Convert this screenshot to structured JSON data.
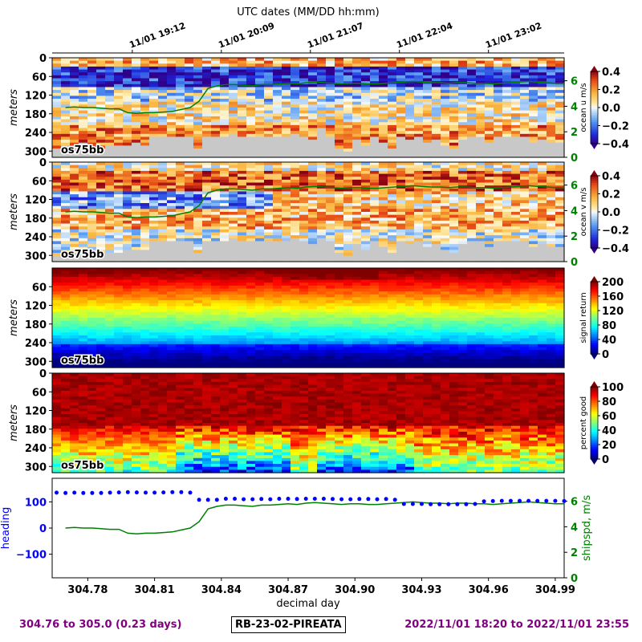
{
  "top_axis": {
    "title": "UTC dates (MM/DD hh:mm)",
    "ticks": [
      {
        "x": 304.8,
        "label": "11/01 19:12"
      },
      {
        "x": 304.84,
        "label": "11/01 20:09"
      },
      {
        "x": 304.88,
        "label": "11/01 21:07"
      },
      {
        "x": 304.92,
        "label": "11/01 22:04"
      },
      {
        "x": 304.96,
        "label": "11/01 23:02"
      }
    ]
  },
  "footer": {
    "range_text": "304.76 to 305.0 (0.23 days)",
    "cruise_id": "RB-23-02-PIREATA",
    "date_range_text": "2022/11/01 18:20 to 2022/11/01 23:55"
  },
  "colors": {
    "text_purple": "#800080",
    "heading_blue": "#0000ff",
    "shipspd_green": "#008000",
    "nodata_gray": "#c8c8c8"
  },
  "chart_data": [
    {
      "type": "heatmap",
      "name_tag": "os75bb",
      "ylabel": "meters",
      "yticks": [
        0,
        60,
        120,
        180,
        240,
        300
      ],
      "ylim": [
        320,
        0
      ],
      "xlim": [
        304.764,
        304.994
      ],
      "colorbar": {
        "label": "ocean u m/s",
        "ticks": [
          "0.4",
          "0.2",
          "0.0",
          "−0.2",
          "−0.4"
        ],
        "range": [
          -0.4,
          0.4
        ],
        "cmap": "bwr-jet"
      },
      "right_axis": {
        "ticks": [
          "6",
          "4",
          "2",
          "0"
        ],
        "color": "#008000"
      },
      "shipspd_overlay": true,
      "pattern": "u",
      "nodata_depth": [
        290,
        280,
        280,
        270,
        290,
        290,
        285,
        285,
        280,
        270,
        280,
        250,
        250,
        250,
        250,
        250,
        290,
        250,
        250,
        250,
        240,
        250,
        250,
        250,
        250,
        250,
        250,
        240,
        250,
        260,
        230,
        250,
        290,
        300,
        260,
        280,
        250,
        270,
        290,
        250,
        260,
        250,
        270,
        260,
        280,
        290,
        260,
        250,
        250,
        270,
        250,
        250,
        250,
        250,
        270,
        260,
        270,
        270
      ]
    },
    {
      "type": "heatmap",
      "name_tag": "os75bb",
      "ylabel": "meters",
      "yticks": [
        0,
        60,
        120,
        180,
        240,
        300
      ],
      "ylim": [
        320,
        0
      ],
      "xlim": [
        304.764,
        304.994
      ],
      "colorbar": {
        "label": "ocean v m/s",
        "ticks": [
          "0.4",
          "0.2",
          "0.0",
          "−0.2",
          "−0.4"
        ],
        "range": [
          -0.4,
          0.4
        ],
        "cmap": "bwr-jet"
      },
      "right_axis": {
        "ticks": [
          "6",
          "4",
          "2",
          "0"
        ],
        "color": "#008000"
      },
      "shipspd_overlay": true,
      "pattern": "v",
      "nodata_depth": [
        300,
        290,
        290,
        280,
        295,
        295,
        290,
        290,
        285,
        280,
        285,
        250,
        250,
        250,
        250,
        250,
        290,
        250,
        250,
        250,
        240,
        250,
        250,
        250,
        250,
        250,
        250,
        240,
        250,
        260,
        240,
        250,
        290,
        300,
        260,
        280,
        250,
        270,
        290,
        250,
        260,
        250,
        270,
        260,
        280,
        290,
        260,
        250,
        250,
        270,
        250,
        250,
        250,
        250,
        270,
        260,
        270,
        270
      ]
    },
    {
      "type": "heatmap",
      "name_tag": "os75bb",
      "ylabel": "meters",
      "yticks": [
        60,
        120,
        180,
        240,
        300
      ],
      "ylim": [
        320,
        0
      ],
      "xlim": [
        304.764,
        304.994
      ],
      "colorbar": {
        "label": "signal return",
        "ticks": [
          "200",
          "160",
          "120",
          "80",
          "40",
          "0"
        ],
        "range": [
          0,
          200
        ],
        "cmap": "jet"
      },
      "pattern": "amp"
    },
    {
      "type": "heatmap",
      "name_tag": "os75bb",
      "ylabel": "meters",
      "yticks": [
        0,
        60,
        120,
        180,
        240,
        300
      ],
      "ylim": [
        320,
        0
      ],
      "xlim": [
        304.764,
        304.994
      ],
      "colorbar": {
        "label": "percent good",
        "ticks": [
          "100",
          "80",
          "60",
          "40",
          "20",
          "0"
        ],
        "range": [
          0,
          100
        ],
        "cmap": "jet"
      },
      "pattern": "pg"
    },
    {
      "type": "line",
      "xlabel": "decimal day",
      "xticks": [
        "304.78",
        "304.81",
        "304.84",
        "304.87",
        "304.90",
        "304.93",
        "304.96",
        "304.99"
      ],
      "xtick_values": [
        304.78,
        304.81,
        304.84,
        304.87,
        304.9,
        304.93,
        304.96,
        304.99
      ],
      "xlim": [
        304.764,
        304.994
      ],
      "ylabel_left": "heading",
      "ylabel_right": "shipspd, m/s",
      "yticks_left": [
        "100",
        "0",
        "−100"
      ],
      "ylim_left": [
        -190,
        190
      ],
      "yticks_right": [
        "6",
        "4",
        "2",
        "0"
      ],
      "ylim_right": [
        0,
        7.8
      ],
      "series": [
        {
          "name": "heading",
          "style": "dots",
          "color": "#0000ff",
          "x": [
            304.766,
            304.77,
            304.774,
            304.778,
            304.782,
            304.786,
            304.79,
            304.794,
            304.798,
            304.802,
            304.806,
            304.81,
            304.814,
            304.818,
            304.822,
            304.826,
            304.83,
            304.834,
            304.838,
            304.842,
            304.846,
            304.85,
            304.854,
            304.858,
            304.862,
            304.866,
            304.87,
            304.874,
            304.878,
            304.882,
            304.886,
            304.89,
            304.894,
            304.898,
            304.902,
            304.906,
            304.91,
            304.914,
            304.918,
            304.922,
            304.926,
            304.93,
            304.934,
            304.938,
            304.942,
            304.946,
            304.95,
            304.954,
            304.958,
            304.962,
            304.966,
            304.97,
            304.974,
            304.978,
            304.982,
            304.986,
            304.99,
            304.994
          ],
          "values": [
            135,
            134,
            135,
            134,
            134,
            134,
            135,
            136,
            137,
            136,
            135,
            135,
            136,
            137,
            137,
            135,
            108,
            108,
            108,
            112,
            112,
            110,
            110,
            111,
            110,
            112,
            112,
            111,
            112,
            112,
            112,
            111,
            110,
            110,
            111,
            111,
            110,
            111,
            108,
            92,
            92,
            92,
            91,
            91,
            91,
            91,
            91,
            92,
            102,
            103,
            104,
            104,
            104,
            104,
            104,
            104,
            104,
            103
          ]
        },
        {
          "name": "shipspd",
          "style": "line",
          "color": "#008000",
          "x": [
            304.77,
            304.774,
            304.778,
            304.782,
            304.786,
            304.79,
            304.794,
            304.798,
            304.802,
            304.806,
            304.81,
            304.814,
            304.818,
            304.822,
            304.826,
            304.83,
            304.834,
            304.838,
            304.842,
            304.846,
            304.85,
            304.854,
            304.858,
            304.862,
            304.866,
            304.87,
            304.874,
            304.878,
            304.882,
            304.886,
            304.89,
            304.894,
            304.898,
            304.902,
            304.906,
            304.91,
            304.914,
            304.918,
            304.922,
            304.926,
            304.93,
            304.934,
            304.938,
            304.942,
            304.946,
            304.95,
            304.954,
            304.958,
            304.962,
            304.966,
            304.97,
            304.974,
            304.978,
            304.982,
            304.986,
            304.99,
            304.994
          ],
          "values": [
            3.9,
            3.95,
            3.9,
            3.9,
            3.85,
            3.8,
            3.8,
            3.5,
            3.45,
            3.5,
            3.5,
            3.55,
            3.6,
            3.75,
            3.9,
            4.4,
            5.4,
            5.6,
            5.7,
            5.7,
            5.65,
            5.6,
            5.7,
            5.7,
            5.75,
            5.8,
            5.75,
            5.85,
            5.9,
            5.85,
            5.8,
            5.75,
            5.8,
            5.8,
            5.75,
            5.75,
            5.8,
            5.85,
            5.9,
            5.95,
            5.9,
            5.85,
            5.85,
            5.8,
            5.85,
            5.85,
            5.8,
            5.8,
            5.75,
            5.8,
            5.85,
            5.9,
            5.95,
            5.9,
            5.85,
            5.8,
            5.8
          ]
        }
      ]
    }
  ]
}
